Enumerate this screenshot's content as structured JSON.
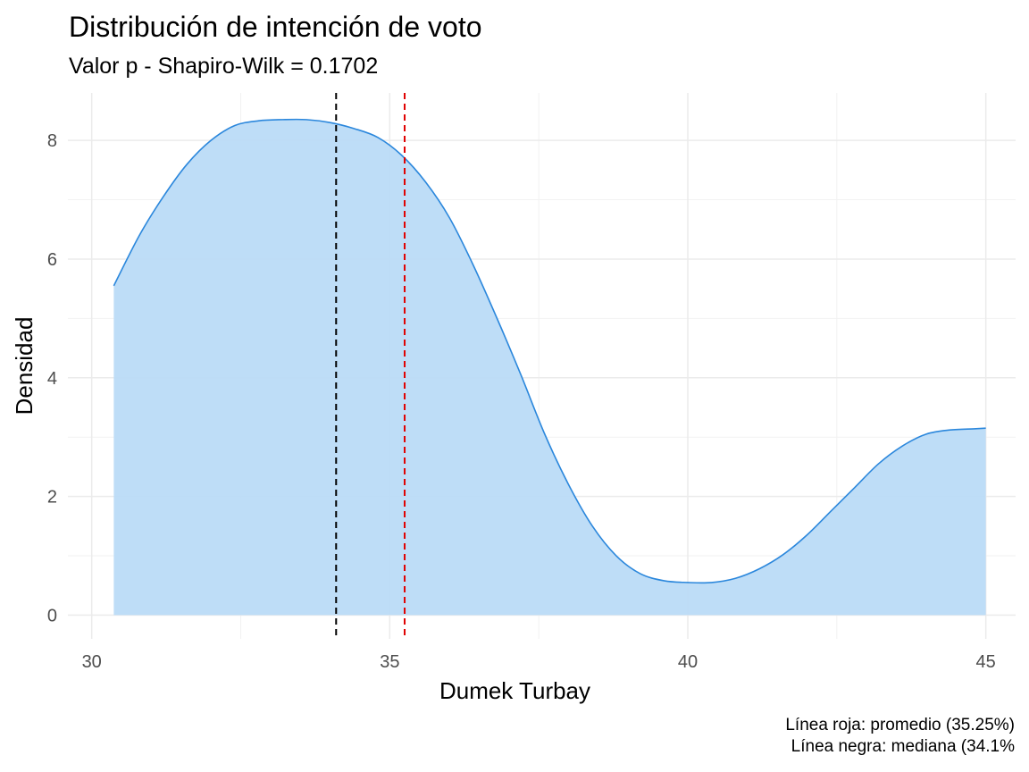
{
  "chart_data": {
    "type": "area",
    "title": "Distribución de intención de voto",
    "subtitle": "Valor p - Shapiro-Wilk = 0.1702",
    "xlabel": "Dumek Turbay",
    "ylabel": "Densidad",
    "xlim": [
      29.6,
      45.5
    ],
    "ylim": [
      -0.4,
      8.8
    ],
    "x_ticks": [
      30,
      35,
      40,
      45
    ],
    "x_tick_labels": [
      "30",
      "35",
      "40",
      "45"
    ],
    "y_ticks": [
      0,
      2,
      4,
      6,
      8
    ],
    "y_tick_labels": [
      "0",
      "2",
      "4",
      "6",
      "8"
    ],
    "grid": true,
    "legend": "none",
    "density": {
      "x": [
        30.37,
        30.8,
        31.2,
        31.6,
        32.0,
        32.4,
        32.8,
        33.2,
        33.6,
        34.0,
        34.4,
        34.8,
        35.2,
        35.6,
        36.0,
        36.4,
        36.8,
        37.2,
        37.6,
        38.0,
        38.4,
        38.8,
        39.2,
        39.6,
        40.0,
        40.4,
        40.8,
        41.2,
        41.6,
        42.0,
        42.4,
        42.8,
        43.2,
        43.6,
        44.0,
        44.4,
        44.8,
        45.0
      ],
      "y": [
        5.55,
        6.4,
        7.05,
        7.6,
        8.0,
        8.25,
        8.33,
        8.35,
        8.35,
        8.3,
        8.2,
        8.05,
        7.75,
        7.3,
        6.7,
        5.9,
        5.0,
        4.05,
        3.05,
        2.2,
        1.5,
        1.0,
        0.7,
        0.58,
        0.55,
        0.55,
        0.62,
        0.78,
        1.02,
        1.35,
        1.75,
        2.15,
        2.55,
        2.85,
        3.05,
        3.12,
        3.14,
        3.15
      ]
    },
    "mean_line": {
      "x": 35.25,
      "color": "#e00000"
    },
    "median_line": {
      "x": 34.1,
      "color": "#000000"
    },
    "fill_color": "#bbdbf7",
    "line_color": "#2b87dc"
  },
  "caption": {
    "line1": "Línea roja: promedio (35.25%)",
    "line2": "Línea negra: mediana (34.1%"
  }
}
